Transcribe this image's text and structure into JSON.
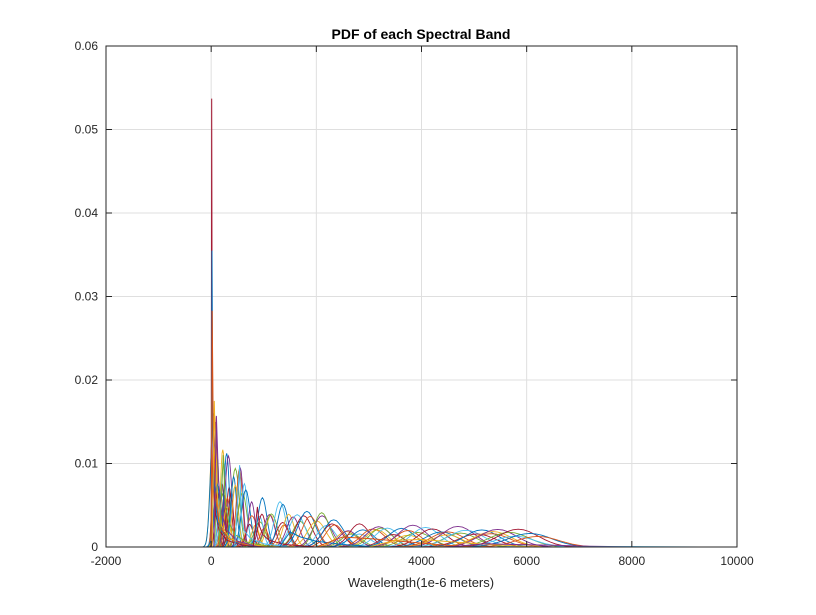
{
  "chart_data": {
    "type": "line",
    "title": "PDF of each Spectral Band",
    "xlabel": "Wavelength(1e-6 meters)",
    "ylabel": "",
    "xlim": [
      -2000,
      10000
    ],
    "ylim": [
      0,
      0.06
    ],
    "xticks": [
      -2000,
      0,
      2000,
      4000,
      6000,
      8000,
      10000
    ],
    "xtick_labels": [
      "-2000",
      "0",
      "2000",
      "4000",
      "6000",
      "8000",
      "10000"
    ],
    "yticks": [
      0,
      0.01,
      0.02,
      0.03,
      0.04,
      0.05,
      0.06
    ],
    "ytick_labels": [
      "0",
      "0.01",
      "0.02",
      "0.03",
      "0.04",
      "0.05",
      "0.06"
    ],
    "grid": true,
    "legend": "none",
    "colors": [
      "#0072BD",
      "#D95319",
      "#EDB120",
      "#7E2F8E",
      "#77AC30",
      "#4DBEEE",
      "#A2142F"
    ],
    "series_note_count": 100,
    "series": [
      {
        "x": [
          0,
          10,
          20,
          40,
          80,
          150,
          300,
          600,
          1000
        ],
        "y": [
          0,
          0.0537,
          0.02,
          0.008,
          0.004,
          0.002,
          0.0008,
          0.0002,
          0
        ]
      },
      {
        "x": [
          0,
          15,
          30,
          60,
          120,
          250,
          500,
          900
        ],
        "y": [
          0,
          0.0355,
          0.015,
          0.007,
          0.003,
          0.0015,
          0.0005,
          0
        ]
      },
      {
        "x": [
          0,
          20,
          40,
          80,
          160,
          320,
          640,
          1200
        ],
        "y": [
          0,
          0.0283,
          0.013,
          0.006,
          0.0025,
          0.001,
          0.0003,
          0
        ]
      },
      {
        "x": [
          20,
          60,
          90,
          130,
          200,
          350,
          700,
          1300
        ],
        "y": [
          0,
          0.0175,
          0.009,
          0.005,
          0.0025,
          0.001,
          0.0003,
          0
        ]
      },
      {
        "x": [
          50,
          100,
          140,
          200,
          300,
          500,
          900
        ],
        "y": [
          0,
          0.0157,
          0.008,
          0.004,
          0.002,
          0.0007,
          0
        ]
      },
      {
        "x": [
          150,
          230,
          270,
          330,
          450,
          700,
          1200
        ],
        "y": [
          0,
          0.011,
          0.005,
          0.003,
          0.0015,
          0.0005,
          0
        ]
      },
      {
        "x": [
          450,
          540,
          570,
          620,
          750,
          1000,
          1500
        ],
        "y": [
          0,
          0.0098,
          0.004,
          0.002,
          0.001,
          0.0004,
          0
        ]
      },
      {
        "x": [
          800,
          880,
          920,
          980,
          1100,
          1400,
          2000
        ],
        "y": [
          0,
          0.0048,
          0.0025,
          0.0015,
          0.0008,
          0.0003,
          0
        ]
      },
      {
        "x": [
          1300,
          1500,
          1700,
          2000,
          2500,
          3200
        ],
        "y": [
          0,
          0.0018,
          0.0012,
          0.0007,
          0.0003,
          0
        ]
      },
      {
        "x": [
          2000,
          2500,
          3000,
          3600,
          4300,
          5000
        ],
        "y": [
          0,
          0.0012,
          0.001,
          0.0007,
          0.0003,
          0
        ]
      },
      {
        "x": [
          3000,
          3500,
          4000,
          4600,
          5300,
          6200
        ],
        "y": [
          0,
          0.0008,
          0.0009,
          0.0006,
          0.0003,
          0
        ]
      },
      {
        "x": [
          4500,
          5200,
          5800,
          6500,
          7200,
          8200
        ],
        "y": [
          0,
          0.0004,
          0.0003,
          0.0002,
          0.0001,
          0
        ]
      },
      {
        "x": [
          -1200,
          -400,
          0
        ],
        "y": [
          0,
          0,
          0
        ]
      },
      {
        "x": [
          6500,
          8000,
          9300
        ],
        "y": [
          0,
          5e-05,
          0
        ]
      }
    ]
  }
}
